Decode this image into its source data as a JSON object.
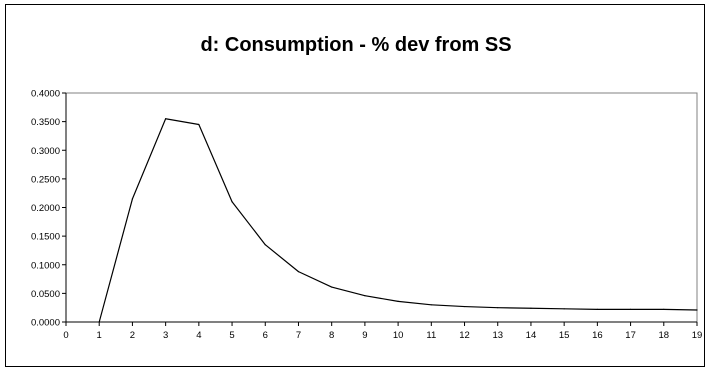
{
  "chart_data": {
    "type": "line",
    "title": "d:  Consumption - % dev from SS",
    "xlabel": "",
    "ylabel": "",
    "x": [
      1,
      2,
      3,
      4,
      5,
      6,
      7,
      8,
      9,
      10,
      11,
      12,
      13,
      14,
      15,
      16,
      17,
      18,
      19
    ],
    "series": [
      {
        "values": [
          0.0,
          0.215,
          0.355,
          0.345,
          0.21,
          0.135,
          0.088,
          0.061,
          0.046,
          0.036,
          0.03,
          0.027,
          0.025,
          0.024,
          0.023,
          0.022,
          0.022,
          0.022,
          0.021
        ],
        "color": "#000000"
      }
    ],
    "xlim": [
      0,
      19
    ],
    "ylim": [
      0,
      0.4
    ],
    "x_ticks": [
      "0",
      "1",
      "2",
      "3",
      "4",
      "5",
      "6",
      "7",
      "8",
      "9",
      "10",
      "11",
      "12",
      "13",
      "14",
      "15",
      "16",
      "17",
      "18",
      "19"
    ],
    "y_ticks": [
      "0.0000",
      "0.0500",
      "0.1000",
      "0.1500",
      "0.2000",
      "0.2500",
      "0.3000",
      "0.3500",
      "0.4000"
    ],
    "grid": false,
    "legend": "none"
  }
}
